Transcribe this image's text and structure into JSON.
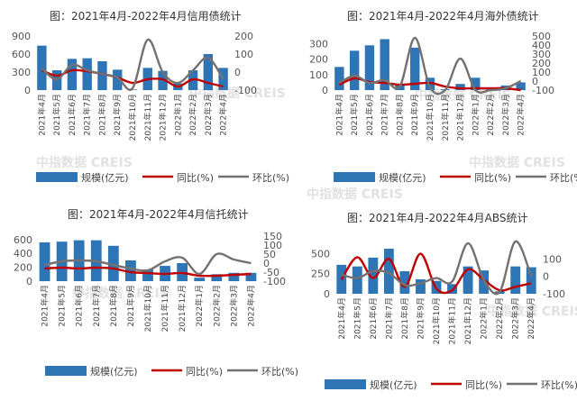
{
  "watermark": {
    "text": "中指数据  CREIS"
  },
  "legend": {
    "bar_label": "规模(亿元)",
    "yoy_label": "同比(%)",
    "mom_label": "环比(%)"
  },
  "colors": {
    "bar": "#2e75b6",
    "yoy": "#c00000",
    "mom": "#767171"
  },
  "chart_data": [
    {
      "type": "bar",
      "title": "图：2021年4月-2022年4月信用债统计",
      "categories": [
        "2021年4月",
        "2021年5月",
        "2021年6月",
        "2021年7月",
        "2021年8月",
        "2021年9月",
        "2021年10月",
        "2021年11月",
        "2021年12月",
        "2022年1月",
        "2022年2月",
        "2022年3月",
        "2022年4月"
      ],
      "series": [
        {
          "name": "规模(亿元)",
          "axis": "left",
          "kind": "bar",
          "values": [
            740,
            330,
            520,
            530,
            480,
            340,
            10,
            370,
            320,
            110,
            330,
            600,
            370
          ]
        },
        {
          "name": "同比(%)",
          "axis": "right",
          "kind": "line",
          "values": [
            10,
            -20,
            10,
            5,
            -10,
            -30,
            -60,
            -40,
            -40,
            -80,
            -40,
            -60,
            -80
          ]
        },
        {
          "name": "环比(%)",
          "axis": "right",
          "kind": "line",
          "values": [
            20,
            -40,
            40,
            10,
            -10,
            -30,
            -90,
            180,
            0,
            -60,
            10,
            80,
            -40
          ]
        }
      ],
      "ylim_left": [
        0,
        900
      ],
      "yticks_left": [
        0,
        300,
        600,
        900
      ],
      "ylim_right": [
        -100,
        200
      ],
      "yticks_right": [
        -100,
        0,
        100,
        200
      ]
    },
    {
      "type": "bar",
      "title": "图：2021年4月-2022年4月海外债统计",
      "categories": [
        "2021年4月",
        "2021年5月",
        "2021年6月",
        "2021年7月",
        "2021年8月",
        "2021年9月",
        "2021年10月",
        "2021年11月",
        "2021年12月",
        "2022年1月",
        "2022年2月",
        "2022年3月",
        "2022年4月"
      ],
      "series": [
        {
          "name": "规模(亿元)",
          "axis": "left",
          "kind": "bar",
          "values": [
            150,
            255,
            290,
            330,
            30,
            275,
            80,
            5,
            40,
            80,
            5,
            30,
            50
          ]
        },
        {
          "name": "同比(%)",
          "axis": "right",
          "kind": "line",
          "values": [
            -40,
            30,
            -10,
            -20,
            -40,
            -30,
            -20,
            -60,
            -80,
            -80,
            -80,
            -80,
            -100
          ]
        },
        {
          "name": "环比(%)",
          "axis": "right",
          "kind": "line",
          "values": [
            -20,
            60,
            -20,
            10,
            -60,
            480,
            -70,
            -100,
            250,
            -100,
            -100,
            -80,
            0
          ]
        }
      ],
      "ylim_left": [
        0,
        350
      ],
      "yticks_left": [
        0,
        100,
        200,
        300
      ],
      "ylim_right": [
        -100,
        500
      ],
      "yticks_right": [
        -100,
        0,
        100,
        200,
        300,
        400,
        500
      ]
    },
    {
      "type": "bar",
      "title": "图：2021年4月-2022年4月信托统计",
      "categories": [
        "2021年4月",
        "2021年5月",
        "2021年6月",
        "2021年7月",
        "2021年8月",
        "2021年9月",
        "2021年10月",
        "2021年11月",
        "2021年12月",
        "2022年1月",
        "2022年2月",
        "2022年3月",
        "2022年4月"
      ],
      "series": [
        {
          "name": "规模(亿元)",
          "axis": "left",
          "kind": "bar",
          "values": [
            560,
            570,
            590,
            590,
            510,
            300,
            170,
            220,
            260,
            50,
            100,
            120,
            120
          ]
        },
        {
          "name": "同比(%)",
          "axis": "right",
          "kind": "line",
          "values": [
            -30,
            -25,
            -30,
            -25,
            -30,
            -50,
            -55,
            -60,
            -55,
            -70,
            -70,
            -65,
            -60
          ]
        },
        {
          "name": "环比(%)",
          "axis": "right",
          "kind": "line",
          "values": [
            -10,
            10,
            15,
            10,
            -10,
            -30,
            -40,
            10,
            30,
            -60,
            50,
            20,
            0
          ]
        }
      ],
      "ylim_left": [
        0,
        650
      ],
      "yticks_left": [
        0,
        200,
        400,
        600
      ],
      "ylim_right": [
        -100,
        150
      ],
      "yticks_right": [
        -100,
        -50,
        0,
        50,
        100,
        150
      ]
    },
    {
      "type": "bar",
      "title": "图：2021年4月-2022年4月ABS统计",
      "categories": [
        "2021年4月",
        "2021年5月",
        "2021年6月",
        "2021年7月",
        "2021年8月",
        "2021年9月",
        "2021年10月",
        "2021年11月",
        "2021年12月",
        "2022年1月",
        "2022年2月",
        "2022年3月",
        "2022年4月"
      ],
      "series": [
        {
          "name": "规模(亿元)",
          "axis": "left",
          "kind": "bar",
          "values": [
            360,
            340,
            450,
            560,
            280,
            180,
            160,
            120,
            340,
            290,
            30,
            340,
            330
          ]
        },
        {
          "name": "同比(%)",
          "axis": "right",
          "kind": "line",
          "values": [
            -20,
            110,
            -10,
            100,
            -60,
            130,
            -70,
            -80,
            40,
            -20,
            -80,
            -60,
            -40
          ]
        },
        {
          "name": "环比(%)",
          "axis": "right",
          "kind": "line",
          "values": [
            10,
            -10,
            30,
            20,
            -50,
            -40,
            -10,
            -30,
            190,
            -20,
            -90,
            220,
            0
          ]
        }
      ],
      "ylim_left": [
        0,
        650
      ],
      "yticks_left": [
        0,
        250,
        500
      ],
      "ylim_right": [
        -100,
        200
      ],
      "yticks_right": [
        -100,
        0,
        100
      ]
    }
  ]
}
